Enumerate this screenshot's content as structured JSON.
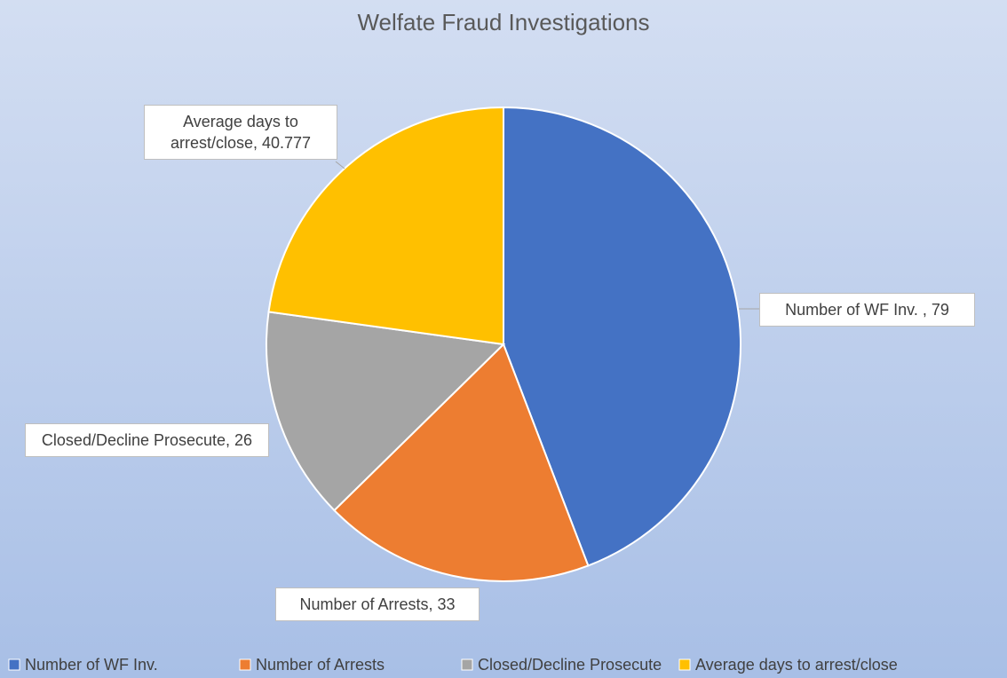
{
  "chart_data": {
    "type": "pie",
    "title": "Welfate Fraud Investigations",
    "categories": [
      "Number of WF Inv.",
      "Number of Arrests",
      "Closed/Decline Prosecute",
      "Average days to arrest/close"
    ],
    "values": [
      79,
      33,
      26,
      40.777
    ],
    "value_labels": [
      "Number of WF Inv. , 79",
      "Number of Arrests, 33",
      "Closed/Decline Prosecute, 26",
      "Average days to arrest/close, 40.777"
    ],
    "colors": [
      "#4472c4",
      "#ed7d31",
      "#a5a5a5",
      "#ffc000"
    ],
    "legend": "bottom"
  }
}
